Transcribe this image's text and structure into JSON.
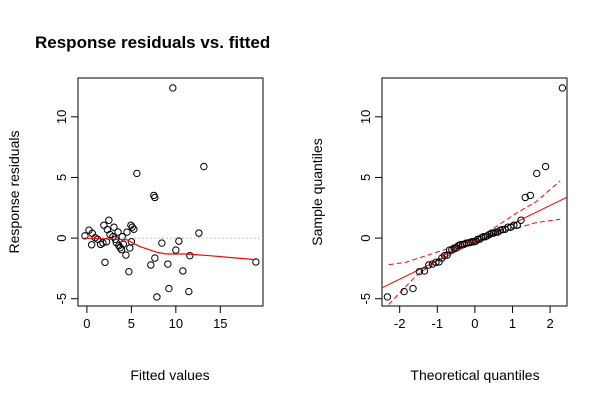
{
  "colors": {
    "points": "#000000",
    "smooth": "#ff0000",
    "zero_line": "#bebebe",
    "qq_line": "#ff0000",
    "envelope": "#ff0000"
  },
  "chart_data": [
    {
      "type": "scatter",
      "title": "Response residuals vs. fitted",
      "xlabel": "Fitted values",
      "ylabel": "Response residuals",
      "xlim": [
        -1,
        19.8
      ],
      "ylim": [
        -5.6,
        13.2
      ],
      "xticks": [
        0,
        5,
        10,
        15
      ],
      "yticks": [
        -5,
        0,
        5,
        10
      ],
      "grid": false,
      "zero_line": 0,
      "points": [
        [
          9.66,
          12.38
        ],
        [
          13.15,
          5.9
        ],
        [
          5.62,
          5.33
        ],
        [
          7.53,
          3.52
        ],
        [
          7.64,
          3.35
        ],
        [
          2.47,
          1.47
        ],
        [
          1.91,
          1.06
        ],
        [
          3.04,
          0.9
        ],
        [
          0.23,
          0.65
        ],
        [
          4.95,
          1.06
        ],
        [
          5.1,
          0.9
        ],
        [
          5.28,
          0.73
        ],
        [
          4.5,
          0.49
        ],
        [
          -0.22,
          0.19
        ],
        [
          0.94,
          0.03
        ],
        [
          2.93,
          0.11
        ],
        [
          3.97,
          0.11
        ],
        [
          12.59,
          0.41
        ],
        [
          0.53,
          -0.55
        ],
        [
          1.54,
          -0.52
        ],
        [
          2.21,
          -0.3
        ],
        [
          3.3,
          -0.36
        ],
        [
          3.6,
          -0.63
        ],
        [
          3.75,
          -0.8
        ],
        [
          3.9,
          -0.96
        ],
        [
          4.83,
          -0.82
        ],
        [
          4.39,
          -1.4
        ],
        [
          8.43,
          -0.41
        ],
        [
          10.34,
          -0.25
        ],
        [
          10.0,
          -0.99
        ],
        [
          11.58,
          -1.45
        ],
        [
          7.64,
          -1.65
        ],
        [
          7.19,
          -2.22
        ],
        [
          9.1,
          -2.14
        ],
        [
          10.79,
          -2.71
        ],
        [
          2.03,
          -2.0
        ],
        [
          4.72,
          -2.77
        ],
        [
          19.0,
          -1.97
        ],
        [
          9.22,
          -4.16
        ],
        [
          11.46,
          -4.41
        ],
        [
          7.87,
          -4.85
        ],
        [
          1.2,
          -0.1
        ],
        [
          2.6,
          0.3
        ],
        [
          3.2,
          -0.1
        ],
        [
          4.1,
          -0.5
        ],
        [
          1.8,
          -0.4
        ],
        [
          0.6,
          0.4
        ],
        [
          3.5,
          0.5
        ],
        [
          5.0,
          -0.3
        ],
        [
          2.3,
          0.7
        ]
      ],
      "smooth": [
        [
          -0.3,
          0
        ],
        [
          4.5,
          -0.14
        ],
        [
          5.92,
          -0.69
        ],
        [
          7.8,
          -1.15
        ],
        [
          8.9,
          -1.31
        ],
        [
          11.16,
          -1.31
        ],
        [
          13.78,
          -1.45
        ],
        [
          16.78,
          -1.64
        ],
        [
          18.95,
          -1.78
        ]
      ]
    },
    {
      "type": "scatter",
      "title": "",
      "xlabel": "Theoretical quantiles",
      "ylabel": "Sample quantiles",
      "xlim": [
        -2.47,
        2.45
      ],
      "ylim": [
        -5.6,
        13.2
      ],
      "xticks": [
        -2,
        -1,
        0,
        1,
        2
      ],
      "yticks": [
        -5,
        0,
        5,
        10
      ],
      "grid": false,
      "points_from": "sorted residuals of first panel vs normal quantiles",
      "reference_line": {
        "intercept": -0.35,
        "slope": 1.52
      },
      "envelope_upper": [
        [
          -2.29,
          -2.19
        ],
        [
          -1.83,
          -1.99
        ],
        [
          -1.03,
          -1.18
        ],
        [
          0.04,
          -0.14
        ],
        [
          1.1,
          2.05
        ],
        [
          1.63,
          3.0
        ],
        [
          2.27,
          4.72
        ]
      ],
      "envelope_lower": [
        [
          -2.29,
          -5.47
        ],
        [
          -1.56,
          -3.1
        ],
        [
          -0.67,
          -1.1
        ],
        [
          0.39,
          0.13
        ],
        [
          1.1,
          0.8
        ],
        [
          1.63,
          1.28
        ],
        [
          2.27,
          1.55
        ]
      ]
    }
  ]
}
